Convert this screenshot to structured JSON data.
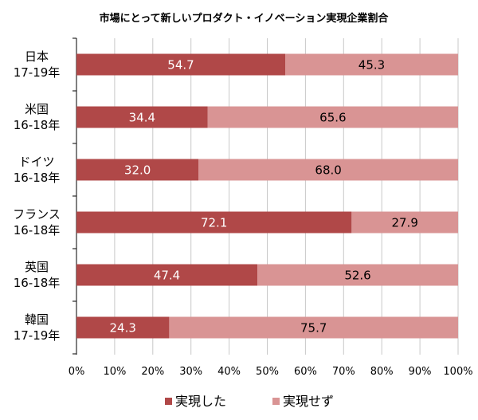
{
  "chart_data": {
    "type": "bar",
    "orientation": "horizontal",
    "stacked": true,
    "title": "市場にとって新しいプロダクト・イノベーション実現企業割合",
    "categories": [
      [
        "日本",
        "17-19年"
      ],
      [
        "米国",
        "16-18年"
      ],
      [
        "ドイツ",
        "16-18年"
      ],
      [
        "フランス",
        "16-18年"
      ],
      [
        "英国",
        "16-18年"
      ],
      [
        "韓国",
        "17-19年"
      ]
    ],
    "series": [
      {
        "name": "実現した",
        "color": "#b04848",
        "values": [
          54.7,
          34.4,
          32.0,
          72.1,
          47.4,
          24.3
        ],
        "labels": [
          "54.7",
          "34.4",
          "32.0",
          "72.1",
          "47.4",
          "24.3"
        ]
      },
      {
        "name": "実現せず",
        "color": "#d99494",
        "values": [
          45.3,
          65.6,
          68.0,
          27.9,
          52.6,
          75.7
        ],
        "labels": [
          "45.3",
          "65.6",
          "68.0",
          "27.9",
          "52.6",
          "75.7"
        ]
      }
    ],
    "xlim": [
      0,
      100
    ],
    "xticks": [
      "0%",
      "10%",
      "20%",
      "30%",
      "40%",
      "50%",
      "60%",
      "70%",
      "80%",
      "90%",
      "100%"
    ],
    "grid": "vertical",
    "legend": "bottom"
  }
}
